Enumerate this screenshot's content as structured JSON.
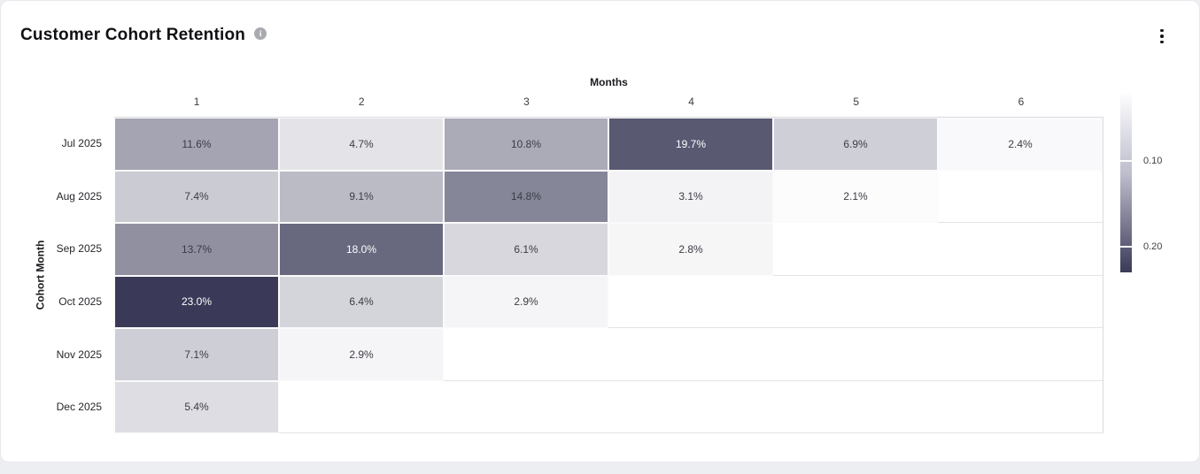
{
  "header": {
    "title": "Customer Cohort Retention"
  },
  "chart_data": {
    "type": "heatmap",
    "title": "Customer Cohort Retention",
    "x_axis_title": "Months",
    "y_axis_title": "Cohort Month",
    "columns": [
      "1",
      "2",
      "3",
      "4",
      "5",
      "6"
    ],
    "rows": [
      {
        "label": "Jul 2025",
        "values": [
          11.6,
          4.7,
          10.8,
          19.7,
          6.9,
          2.4
        ]
      },
      {
        "label": "Aug 2025",
        "values": [
          7.4,
          9.1,
          14.8,
          3.1,
          2.1,
          null
        ]
      },
      {
        "label": "Sep 2025",
        "values": [
          13.7,
          18.0,
          6.1,
          2.8,
          null,
          null
        ]
      },
      {
        "label": "Oct 2025",
        "values": [
          23.0,
          6.4,
          2.9,
          null,
          null,
          null
        ]
      },
      {
        "label": "Nov 2025",
        "values": [
          7.1,
          2.9,
          null,
          null,
          null,
          null
        ]
      },
      {
        "label": "Dec 2025",
        "values": [
          5.4,
          null,
          null,
          null,
          null,
          null
        ]
      }
    ],
    "value_unit": "%",
    "legend_position": "right",
    "colorbar": {
      "tick_labels": [
        "0.10",
        "0.20"
      ],
      "tick_values": [
        0.1,
        0.2
      ],
      "min": 0.021,
      "max": 0.23,
      "color_min": "#fcfcfd",
      "color_max": "#3a3a58"
    }
  }
}
